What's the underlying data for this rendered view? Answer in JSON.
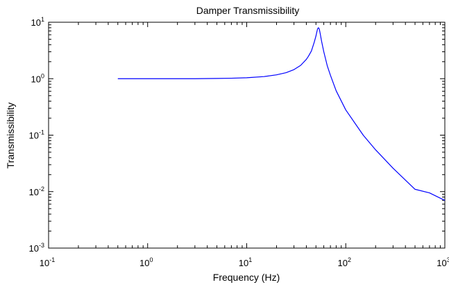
{
  "chart_data": {
    "type": "line",
    "title": "Damper Transmissibility",
    "xlabel": "Frequency (Hz)",
    "ylabel": "Transmissibility",
    "xscale": "log",
    "yscale": "log",
    "xlim": [
      0.1,
      1000
    ],
    "ylim": [
      0.001,
      10
    ],
    "grid": false,
    "line_color": "#0000ff",
    "x_ticks": [
      {
        "value": 0.1,
        "base": "10",
        "exp": "-1"
      },
      {
        "value": 1,
        "base": "10",
        "exp": "0"
      },
      {
        "value": 10,
        "base": "10",
        "exp": "1"
      },
      {
        "value": 100,
        "base": "10",
        "exp": "2"
      },
      {
        "value": 1000,
        "base": "10",
        "exp": "3"
      }
    ],
    "y_ticks": [
      {
        "value": 0.001,
        "base": "10",
        "exp": "-3"
      },
      {
        "value": 0.01,
        "base": "10",
        "exp": "-2"
      },
      {
        "value": 0.1,
        "base": "10",
        "exp": "-1"
      },
      {
        "value": 1,
        "base": "10",
        "exp": "0"
      },
      {
        "value": 10,
        "base": "10",
        "exp": "1"
      }
    ],
    "series": [
      {
        "x": [
          0.5,
          1,
          2,
          3,
          5,
          7,
          10,
          15,
          20,
          25,
          30,
          35,
          40,
          42,
          45,
          48,
          50,
          51,
          52,
          53,
          54,
          55,
          57,
          60,
          65,
          70,
          80,
          100,
          150,
          200,
          300,
          400,
          500,
          700,
          1000
        ],
        "y": [
          1.0,
          1.0,
          1.0,
          1.0,
          1.01,
          1.02,
          1.04,
          1.09,
          1.17,
          1.28,
          1.45,
          1.72,
          2.2,
          2.5,
          3.1,
          4.4,
          5.7,
          6.7,
          7.7,
          8.0,
          7.6,
          6.5,
          4.6,
          3.0,
          1.7,
          1.15,
          0.61,
          0.28,
          0.1,
          0.055,
          0.026,
          0.016,
          0.011,
          0.0095,
          0.007
        ]
      }
    ]
  }
}
